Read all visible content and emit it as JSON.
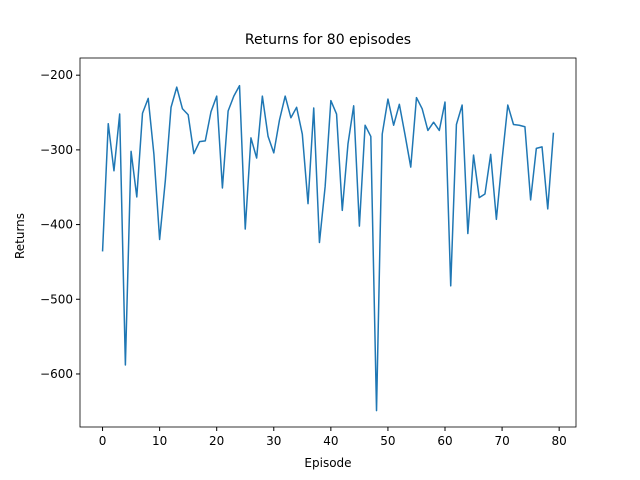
{
  "chart_data": {
    "type": "line",
    "title": "Returns for 80 episodes",
    "x_label": "Episode",
    "y_label": "Returns",
    "x": [
      0,
      1,
      2,
      3,
      4,
      5,
      6,
      7,
      8,
      9,
      10,
      11,
      12,
      13,
      14,
      15,
      16,
      17,
      18,
      19,
      20,
      21,
      22,
      23,
      24,
      25,
      26,
      27,
      28,
      29,
      30,
      31,
      32,
      33,
      34,
      35,
      36,
      37,
      38,
      39,
      40,
      41,
      42,
      43,
      44,
      45,
      46,
      47,
      48,
      49,
      50,
      51,
      52,
      53,
      54,
      55,
      56,
      57,
      58,
      59,
      60,
      61,
      62,
      63,
      64,
      65,
      66,
      67,
      68,
      69,
      70,
      71,
      72,
      73,
      74,
      75,
      76,
      77,
      78,
      79
    ],
    "series": [
      {
        "name": "Returns",
        "color": "#1f77b4",
        "values": [
          -436,
          -265,
          -328,
          -252,
          -588,
          -302,
          -363,
          -251,
          -231,
          -306,
          -420,
          -341,
          -243,
          -216,
          -245,
          -253,
          -305,
          -289,
          -288,
          -249,
          -228,
          -351,
          -248,
          -228,
          -214,
          -406,
          -284,
          -311,
          -228,
          -282,
          -304,
          -260,
          -228,
          -257,
          -243,
          -279,
          -372,
          -244,
          -424,
          -349,
          -234,
          -252,
          -381,
          -292,
          -241,
          -402,
          -267,
          -282,
          -649,
          -279,
          -232,
          -267,
          -239,
          -280,
          -323,
          -230,
          -245,
          -274,
          -263,
          -274,
          -236,
          -482,
          -266,
          -240,
          -412,
          -307,
          -364,
          -359,
          -306,
          -393,
          -313,
          -240,
          -266,
          -267,
          -269,
          -367,
          -298,
          -296,
          -379,
          -277
        ]
      }
    ],
    "xlim": [
      -3.95,
      82.95
    ],
    "ylim": [
      -671,
      -177
    ],
    "xticks": [
      0,
      10,
      20,
      30,
      40,
      50,
      60,
      70,
      80
    ],
    "yticks": [
      {
        "value": -600,
        "label": "−600"
      },
      {
        "value": -500,
        "label": "−500"
      },
      {
        "value": -400,
        "label": "−400"
      },
      {
        "value": -300,
        "label": "−300"
      },
      {
        "value": -200,
        "label": "−200"
      }
    ],
    "grid": false
  }
}
